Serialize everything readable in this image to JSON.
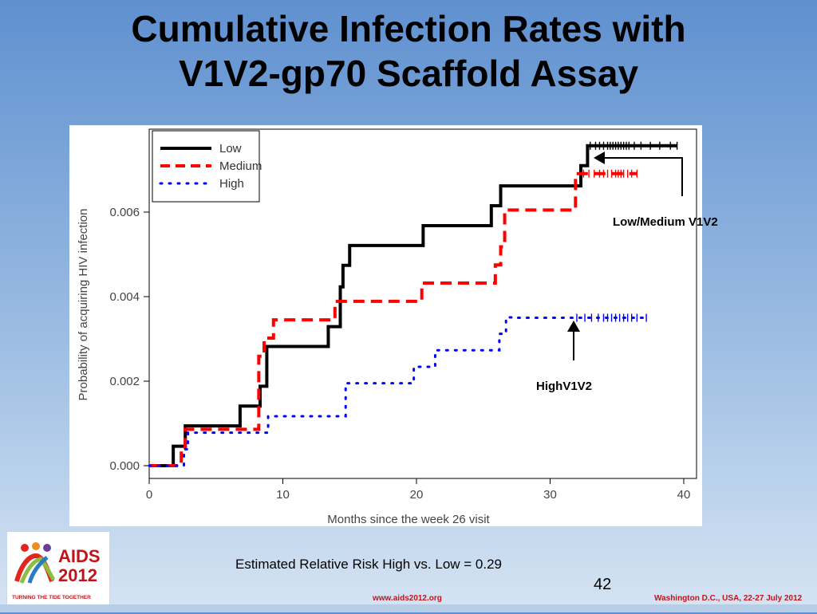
{
  "slide": {
    "title_line1": "Cumulative Infection Rates with",
    "title_line2": "V1V2-gp70 Scaffold Assay",
    "risk_text": "Estimated Relative Risk High vs. Low = 0.29",
    "page_number": "42",
    "footer_url": "www.aids2012.org",
    "footer_location": "Washington D.C., USA, 22-27 July 2012",
    "logo": {
      "icon": "ribbon-people-logo-icon",
      "line1": "AIDS",
      "line2": "2012",
      "tagline": "TURNING THE TIDE TOGETHER"
    },
    "annotations": {
      "low_medium": "Low/Medium V1V2",
      "high": "HighV1V2"
    }
  },
  "chart_data": {
    "type": "line",
    "style": "step",
    "xlabel": "Months since the week 26 visit",
    "ylabel": "Probability of acquiring HIV infection",
    "xlim": [
      0,
      40
    ],
    "ylim": [
      -0.0002,
      0.0077
    ],
    "xticks": [
      "0",
      "10",
      "20",
      "30",
      "40"
    ],
    "yticks": [
      "0.000",
      "0.002",
      "0.004",
      "0.006"
    ],
    "legend_position": "top-left",
    "grid": false,
    "series": [
      {
        "name": "Low",
        "color": "#000000",
        "dash": "solid",
        "x": [
          0,
          1.8,
          2.7,
          6.8,
          8.3,
          8.8,
          13.4,
          14.3,
          14.5,
          15.0,
          20.5,
          25.6,
          26.3,
          32.3,
          32.8
        ],
        "y": [
          0,
          0.00046,
          0.00094,
          0.00141,
          0.00188,
          0.00282,
          0.00329,
          0.00423,
          0.00474,
          0.00521,
          0.00568,
          0.00615,
          0.00662,
          0.0071,
          0.00757
        ],
        "end_x": 39.5,
        "censor_x": [
          33.0,
          33.4,
          33.7,
          34.0,
          34.3,
          34.5,
          34.7,
          34.9,
          35.1,
          35.3,
          35.5,
          35.7,
          35.9,
          36.3,
          36.8,
          37.5,
          38.2,
          39.0,
          39.5
        ]
      },
      {
        "name": "Medium",
        "color": "#ff0000",
        "dash": "dashed",
        "x": [
          0,
          2.4,
          2.7,
          8.2,
          8.6,
          9.3,
          13.9,
          20.4,
          25.9,
          26.3,
          26.6,
          31.9
        ],
        "y": [
          0,
          0.00043,
          0.00086,
          0.00259,
          0.00302,
          0.00345,
          0.00389,
          0.00432,
          0.00475,
          0.00518,
          0.00605,
          0.00691
        ],
        "end_x": 36.5,
        "censor_x": [
          32.5,
          32.9,
          33.3,
          33.7,
          34.0,
          34.3,
          34.6,
          34.9,
          35.1,
          35.3,
          35.5,
          35.8,
          36.1,
          36.5
        ]
      },
      {
        "name": "High",
        "color": "#0000ff",
        "dash": "dotted",
        "x": [
          0,
          2.6,
          2.9,
          8.9,
          14.7,
          19.8,
          21.4,
          26.2,
          26.7,
          27.6
        ],
        "y": [
          0,
          0.00039,
          0.00078,
          0.00117,
          0.00195,
          0.00234,
          0.00273,
          0.00312,
          0.00351,
          0.0035
        ],
        "end_x": 37.2,
        "censor_x": [
          32.0,
          32.6,
          33.1,
          33.6,
          34.0,
          34.3,
          34.6,
          34.9,
          35.2,
          35.5,
          35.8,
          36.1,
          36.5,
          37.2
        ]
      }
    ]
  }
}
